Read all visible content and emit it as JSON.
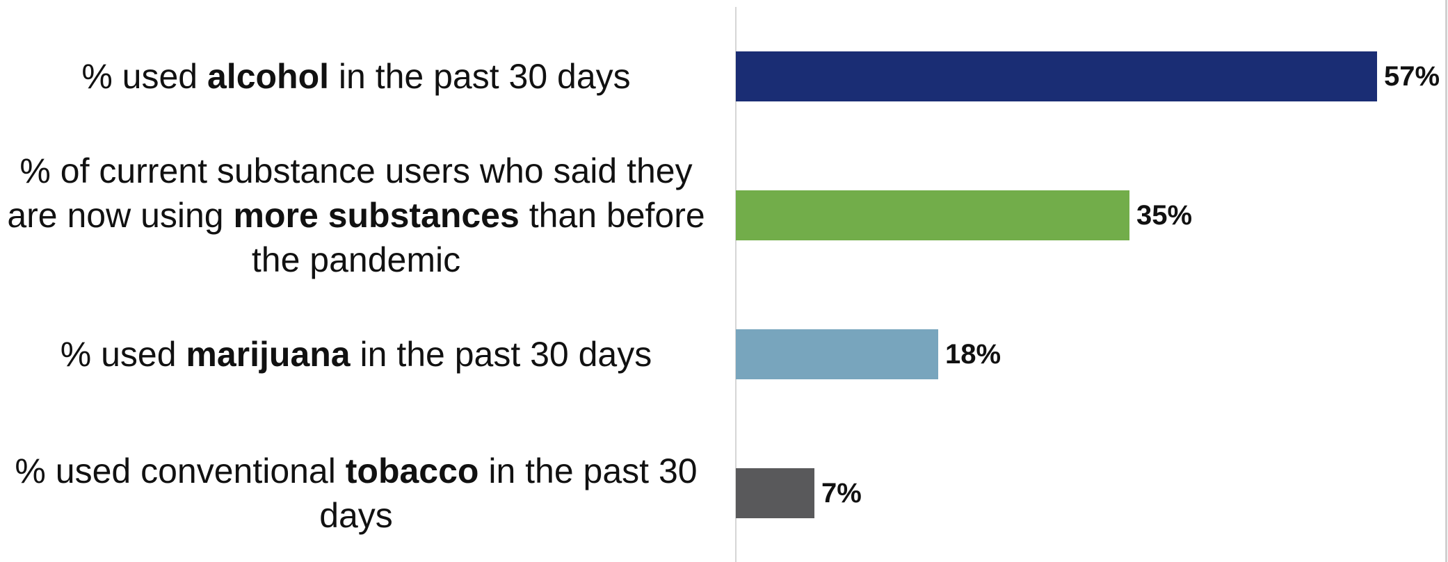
{
  "chart_data": {
    "type": "bar",
    "orientation": "horizontal",
    "categories": [
      {
        "parts": [
          {
            "text": "% used ",
            "bold": false
          },
          {
            "text": "alcohol",
            "bold": true
          },
          {
            "text": " in the past 30 days",
            "bold": false
          }
        ]
      },
      {
        "parts": [
          {
            "text": "% of current substance users who said they are now using ",
            "bold": false
          },
          {
            "text": "more substances",
            "bold": true
          },
          {
            "text": " than before the pandemic",
            "bold": false
          }
        ]
      },
      {
        "parts": [
          {
            "text": "% used ",
            "bold": false
          },
          {
            "text": "marijuana",
            "bold": true
          },
          {
            "text": " in the past 30 days",
            "bold": false
          }
        ]
      },
      {
        "parts": [
          {
            "text": "% used conventional ",
            "bold": false
          },
          {
            "text": "tobacco",
            "bold": true
          },
          {
            "text": " in the past 30 days",
            "bold": false
          }
        ]
      }
    ],
    "values": [
      57,
      35,
      18,
      7
    ],
    "value_labels": [
      "57%",
      "35%",
      "18%",
      "7%"
    ],
    "colors": [
      "#1a2d74",
      "#72ad4a",
      "#78a5bd",
      "#59595b"
    ],
    "title": "",
    "xlabel": "",
    "ylabel": "",
    "xlim": [
      0,
      57
    ],
    "grid": false,
    "legend": "none"
  }
}
